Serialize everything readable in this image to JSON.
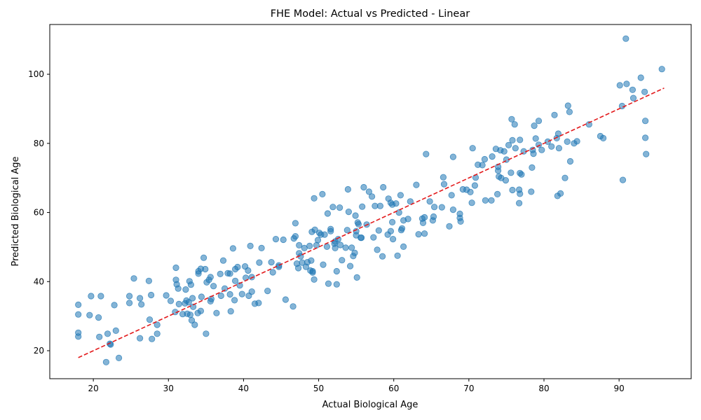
{
  "chart_data": {
    "type": "scatter",
    "title": "FHE Model: Actual vs Predicted - Linear",
    "xlabel": "Actual Biological Age",
    "ylabel": "Predicted Biological Age",
    "xlim": [
      14.2,
      99.6
    ],
    "ylim": [
      11.9,
      114.4
    ],
    "xticks": [
      20,
      30,
      40,
      50,
      60,
      70,
      80,
      90
    ],
    "yticks": [
      20,
      40,
      60,
      80,
      100
    ],
    "grid": false,
    "colors": {
      "points": "#1f77b4",
      "fit_line": "#e31a1c"
    },
    "fit_line": {
      "style": "dashed",
      "x": [
        18,
        96
      ],
      "y": [
        18,
        96
      ]
    },
    "points": [
      [
        18,
        33.3
      ],
      [
        18,
        30.5
      ],
      [
        19.5,
        30.3
      ],
      [
        19.7,
        35.8
      ],
      [
        21,
        35.8
      ],
      [
        20.7,
        29.6
      ],
      [
        18,
        25.2
      ],
      [
        18,
        24.1
      ],
      [
        20.8,
        24
      ],
      [
        21.9,
        24.9
      ],
      [
        22.2,
        22
      ],
      [
        22.3,
        21.8
      ],
      [
        23,
        25.8
      ],
      [
        21.7,
        16.7
      ],
      [
        23.4,
        17.9
      ],
      [
        22.8,
        33.2
      ],
      [
        24.8,
        33.8
      ],
      [
        24.8,
        35.8
      ],
      [
        25.4,
        40.9
      ],
      [
        26.2,
        35.2
      ],
      [
        26.4,
        33.4
      ],
      [
        27.4,
        40.2
      ],
      [
        27.7,
        36.1
      ],
      [
        27.5,
        29
      ],
      [
        28.5,
        27.5
      ],
      [
        26.2,
        23.6
      ],
      [
        27.8,
        23.4
      ],
      [
        28.5,
        24.9
      ],
      [
        29.7,
        36
      ],
      [
        30.3,
        34.4
      ],
      [
        31,
        44
      ],
      [
        31,
        40.5
      ],
      [
        31.1,
        39.2
      ],
      [
        31.3,
        38
      ],
      [
        30.9,
        31.2
      ],
      [
        31.4,
        33.5
      ],
      [
        31.9,
        30.6
      ],
      [
        32.2,
        33.7
      ],
      [
        32.3,
        37.7
      ],
      [
        32.4,
        34.5
      ],
      [
        32.5,
        30.7
      ],
      [
        32.7,
        34
      ],
      [
        32.9,
        30.4
      ],
      [
        32.8,
        40.1
      ],
      [
        33,
        39.1
      ],
      [
        33.2,
        35.2
      ],
      [
        33.1,
        28.8
      ],
      [
        33.3,
        32.7
      ],
      [
        33.5,
        27.5
      ],
      [
        33.9,
        30.9
      ],
      [
        34,
        42.3
      ],
      [
        34,
        43
      ],
      [
        34.3,
        31.5
      ],
      [
        34.3,
        43.7
      ],
      [
        34.4,
        35.6
      ],
      [
        34.7,
        46.9
      ],
      [
        34.9,
        43.6
      ],
      [
        35.1,
        39.8
      ],
      [
        35,
        24.9
      ],
      [
        35.4,
        40.5
      ],
      [
        35.6,
        34.3
      ],
      [
        35.7,
        35
      ],
      [
        35.6,
        41.3
      ],
      [
        36,
        38.7
      ],
      [
        36.4,
        30.9
      ],
      [
        36.9,
        42.2
      ],
      [
        37,
        35.9
      ],
      [
        37.3,
        46.1
      ],
      [
        37.5,
        38
      ],
      [
        37.9,
        42.4
      ],
      [
        38.2,
        42.3
      ],
      [
        38.2,
        36.3
      ],
      [
        38.3,
        31.4
      ],
      [
        38.6,
        49.6
      ],
      [
        38.8,
        34.6
      ],
      [
        38.9,
        40.2
      ],
      [
        38.9,
        43.6
      ],
      [
        39.2,
        44.2
      ],
      [
        39.5,
        38.9
      ],
      [
        39.8,
        36.4
      ],
      [
        40.2,
        44.4
      ],
      [
        40.3,
        41.1
      ],
      [
        40.6,
        43.2
      ],
      [
        40.7,
        35.9
      ],
      [
        40.9,
        50.3
      ],
      [
        41.1,
        37.1
      ],
      [
        41.1,
        41.3
      ],
      [
        41.5,
        33.6
      ],
      [
        42,
        33.8
      ],
      [
        42.1,
        45.5
      ],
      [
        42.4,
        49.7
      ],
      [
        43.2,
        37.3
      ],
      [
        43.7,
        45.6
      ],
      [
        43.9,
        42.7
      ],
      [
        44.3,
        52.3
      ],
      [
        44.7,
        44.7
      ],
      [
        44.7,
        44.3
      ],
      [
        45.3,
        52.1
      ],
      [
        45.6,
        34.8
      ],
      [
        46.6,
        32.8
      ],
      [
        46.7,
        52.5
      ],
      [
        46.9,
        53.1
      ],
      [
        46.9,
        56.9
      ],
      [
        47.1,
        45.2
      ],
      [
        47.3,
        43.9
      ],
      [
        47.4,
        48.2
      ],
      [
        47.4,
        50.5
      ],
      [
        47.6,
        47.3
      ],
      [
        47.8,
        45.5
      ],
      [
        48.1,
        49.7
      ],
      [
        48.3,
        44.3
      ],
      [
        48.5,
        45.6
      ],
      [
        48.8,
        50.3
      ],
      [
        48.9,
        43.2
      ],
      [
        49,
        46.1
      ],
      [
        49.1,
        54.4
      ],
      [
        49.2,
        43
      ],
      [
        49.2,
        42.6
      ],
      [
        49.4,
        40.6
      ],
      [
        49.4,
        64.1
      ],
      [
        49.5,
        55
      ],
      [
        49.7,
        50.5
      ],
      [
        49.9,
        52
      ],
      [
        50.1,
        54.1
      ],
      [
        50.3,
        53.6
      ],
      [
        50.5,
        65.3
      ],
      [
        50.6,
        44.9
      ],
      [
        50.8,
        53.6
      ],
      [
        51.1,
        50.1
      ],
      [
        51.2,
        59.7
      ],
      [
        51.3,
        39.4
      ],
      [
        51.6,
        55.2
      ],
      [
        51.6,
        54.6
      ],
      [
        51.9,
        61.6
      ],
      [
        52.1,
        51
      ],
      [
        52.2,
        49.7
      ],
      [
        52.2,
        51.6
      ],
      [
        52.4,
        43
      ],
      [
        52.4,
        39.2
      ],
      [
        52.6,
        52.3
      ],
      [
        52.8,
        61.4
      ],
      [
        52.9,
        50.6
      ],
      [
        53.1,
        46.2
      ],
      [
        53.6,
        49.8
      ],
      [
        53.8,
        54.9
      ],
      [
        53.9,
        66.7
      ],
      [
        54,
        60.2
      ],
      [
        54.2,
        44.5
      ],
      [
        54.4,
        49.8
      ],
      [
        54.6,
        47.4
      ],
      [
        54.8,
        48.3
      ],
      [
        54.9,
        59.1
      ],
      [
        55,
        53.4
      ],
      [
        55,
        54.6
      ],
      [
        55.1,
        41.2
      ],
      [
        55.2,
        57.1
      ],
      [
        55.3,
        56.6
      ],
      [
        55.6,
        52.7
      ],
      [
        55.7,
        52.7
      ],
      [
        55.8,
        61.7
      ],
      [
        56,
        67.3
      ],
      [
        56.4,
        56.5
      ],
      [
        56.7,
        66
      ],
      [
        57.1,
        64.6
      ],
      [
        57.3,
        52.8
      ],
      [
        57.5,
        61.9
      ],
      [
        57.8,
        49.2
      ],
      [
        58,
        54.8
      ],
      [
        58.2,
        61.9
      ],
      [
        58.5,
        47.3
      ],
      [
        58.6,
        67.3
      ],
      [
        59.2,
        53.6
      ],
      [
        59.3,
        64
      ],
      [
        59.6,
        62.8
      ],
      [
        59.8,
        62.3
      ],
      [
        59.8,
        57.2
      ],
      [
        59.6,
        54.6
      ],
      [
        59.9,
        52.3
      ],
      [
        60.3,
        62.6
      ],
      [
        60.5,
        47.5
      ],
      [
        60.7,
        60
      ],
      [
        60.9,
        65
      ],
      [
        61,
        54.9
      ],
      [
        61.1,
        55.4
      ],
      [
        61.3,
        50.1
      ],
      [
        61.3,
        57.7
      ],
      [
        61.9,
        58.1
      ],
      [
        62.2,
        63.2
      ],
      [
        63,
        68
      ],
      [
        63.3,
        53.7
      ],
      [
        63.8,
        58.2
      ],
      [
        63.9,
        57
      ],
      [
        64.1,
        53.9
      ],
      [
        64.1,
        58.6
      ],
      [
        64.3,
        76.9
      ],
      [
        64.8,
        63.2
      ],
      [
        65.2,
        57.7
      ],
      [
        65.3,
        58.8
      ],
      [
        65.4,
        61.6
      ],
      [
        66.4,
        61.5
      ],
      [
        66.6,
        70.2
      ],
      [
        66.7,
        68.2
      ],
      [
        67.4,
        56
      ],
      [
        67.7,
        65
      ],
      [
        67.9,
        60.8
      ],
      [
        67.9,
        76.1
      ],
      [
        68.8,
        59.6
      ],
      [
        68.8,
        58.4
      ],
      [
        68.9,
        57.4
      ],
      [
        69.2,
        66.7
      ],
      [
        69.7,
        66.6
      ],
      [
        70.2,
        65.9
      ],
      [
        70.4,
        62.8
      ],
      [
        70.5,
        78.6
      ],
      [
        70.8,
        67.8
      ],
      [
        70.9,
        70.1
      ],
      [
        71.2,
        73.8
      ],
      [
        71.8,
        73.7
      ],
      [
        72.1,
        75.4
      ],
      [
        72.2,
        63.5
      ],
      [
        73,
        63.5
      ],
      [
        73.1,
        76.2
      ],
      [
        73.6,
        78.4
      ],
      [
        73.8,
        65.3
      ],
      [
        73.9,
        73.2
      ],
      [
        73.9,
        72.1
      ],
      [
        74,
        70.4
      ],
      [
        74.2,
        78
      ],
      [
        74.3,
        70
      ],
      [
        74.7,
        77.7
      ],
      [
        74.9,
        69.3
      ],
      [
        75,
        75.3
      ],
      [
        75.3,
        79.5
      ],
      [
        75.6,
        71.5
      ],
      [
        75.7,
        87
      ],
      [
        75.8,
        80.9
      ],
      [
        75.8,
        66.5
      ],
      [
        76.1,
        85.5
      ],
      [
        76.2,
        78.6
      ],
      [
        76.7,
        62.7
      ],
      [
        76.7,
        66.6
      ],
      [
        76.8,
        81
      ],
      [
        76.8,
        65.4
      ],
      [
        76.8,
        71.4
      ],
      [
        77,
        71
      ],
      [
        77.3,
        77.7
      ],
      [
        78.3,
        66
      ],
      [
        78.4,
        73
      ],
      [
        78.5,
        78.1
      ],
      [
        78.6,
        77
      ],
      [
        78.7,
        85.1
      ],
      [
        78.9,
        81.4
      ],
      [
        79.3,
        86.5
      ],
      [
        79.3,
        79.6
      ],
      [
        79.7,
        78.1
      ],
      [
        80.5,
        80.5
      ],
      [
        81,
        79.1
      ],
      [
        81.4,
        88.2
      ],
      [
        81.7,
        81.5
      ],
      [
        81.8,
        64.8
      ],
      [
        81.9,
        82.8
      ],
      [
        82,
        78.6
      ],
      [
        82.2,
        65.5
      ],
      [
        82.8,
        70
      ],
      [
        83.1,
        80.5
      ],
      [
        83.2,
        90.9
      ],
      [
        83.4,
        89.1
      ],
      [
        83.5,
        74.8
      ],
      [
        84,
        80
      ],
      [
        84.4,
        80.6
      ],
      [
        86,
        85.5
      ],
      [
        87.5,
        82.1
      ],
      [
        87.9,
        81.5
      ],
      [
        90.1,
        96.8
      ],
      [
        90.4,
        90.8
      ],
      [
        90.5,
        69.4
      ],
      [
        90.9,
        110.3
      ],
      [
        91,
        97.2
      ],
      [
        91.8,
        95.5
      ],
      [
        91.9,
        93.1
      ],
      [
        92.9,
        99
      ],
      [
        93.4,
        94.9
      ],
      [
        93.5,
        81.6
      ],
      [
        93.5,
        86.5
      ],
      [
        93.6,
        76.9
      ],
      [
        95.7,
        101.5
      ]
    ]
  }
}
